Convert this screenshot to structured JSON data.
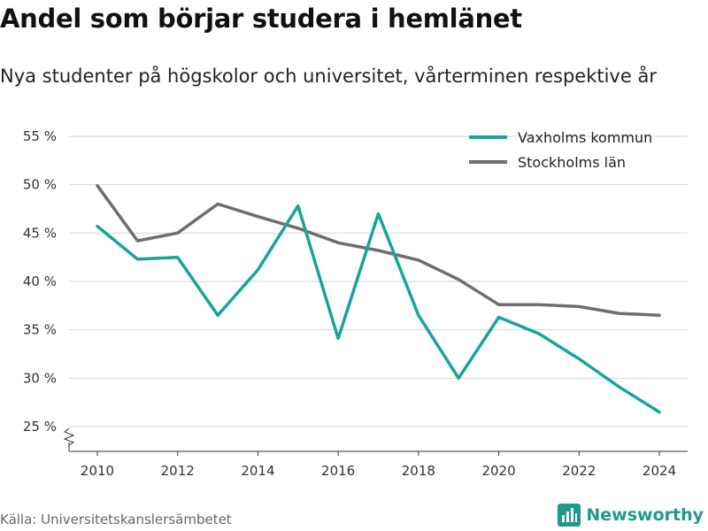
{
  "header": {
    "title": "Andel som börjar studera i hemlänet",
    "subtitle": "Nya studenter på högskolor och universitet, vårterminen respektive år"
  },
  "footer": {
    "source": "Källa: Universitetskanslersämbetet",
    "brand": "Newsworthy",
    "brand_icon": "bar-chart-logo-icon"
  },
  "colors": {
    "vaxholm": "#17a597",
    "stockholm": "#6d6d72",
    "brand": "#1f9a8a"
  },
  "chart_data": {
    "type": "line",
    "title": "Andel som börjar studera i hemlänet",
    "subtitle": "Nya studenter på högskolor och universitet, vårterminen respektive år",
    "x": [
      2010,
      2011,
      2012,
      2013,
      2014,
      2015,
      2016,
      2017,
      2018,
      2019,
      2020,
      2021,
      2022,
      2023,
      2024
    ],
    "x_ticks": [
      2010,
      2012,
      2014,
      2016,
      2018,
      2020,
      2022,
      2024
    ],
    "y_ticks": [
      25,
      30,
      35,
      40,
      45,
      50,
      55
    ],
    "y_tick_suffix": " %",
    "ylim": [
      25,
      55
    ],
    "axis_break": true,
    "grid": true,
    "legend_position": "top-right",
    "series": [
      {
        "name": "Vaxholms kommun",
        "color": "#17a597",
        "values": [
          45.7,
          42.3,
          42.5,
          36.5,
          41.2,
          47.8,
          34.1,
          47.0,
          36.5,
          30.0,
          36.3,
          34.6,
          32.0,
          29.1,
          26.5
        ]
      },
      {
        "name": "Stockholms län",
        "color": "#6d6d72",
        "values": [
          49.9,
          44.2,
          45.0,
          48.0,
          46.7,
          45.5,
          44.0,
          43.2,
          42.2,
          40.2,
          37.6,
          37.6,
          37.4,
          36.7,
          36.5
        ]
      }
    ]
  }
}
